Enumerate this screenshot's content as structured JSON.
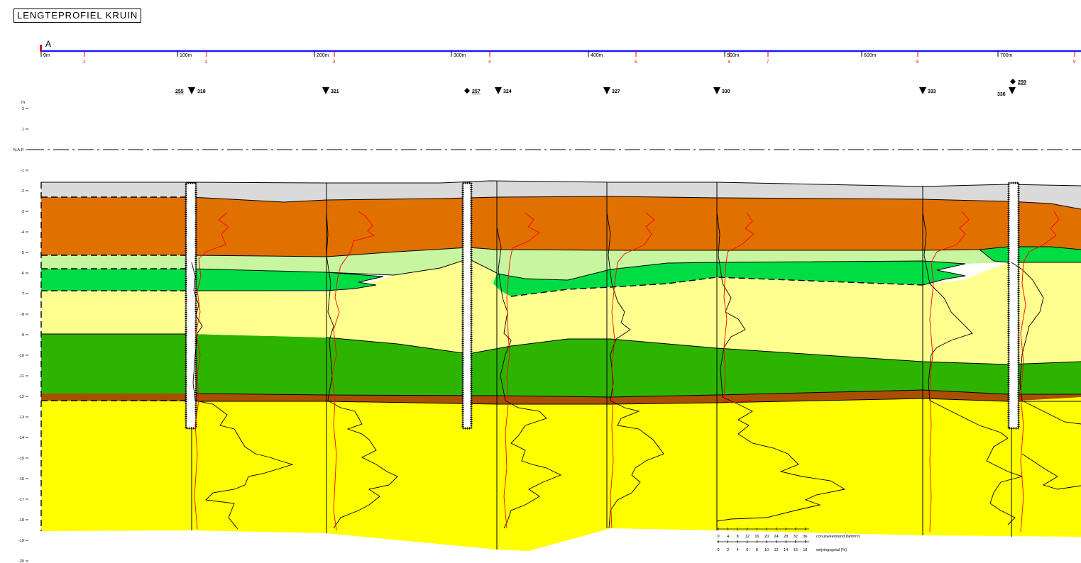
{
  "title": "LENGTEPROFIEL KRUIN",
  "section_marker": "A",
  "chainage_labels": [
    "0m",
    "100m",
    "200m",
    "300m",
    "400m",
    "500m",
    "600m",
    "700m"
  ],
  "red_markers": [
    "1",
    "2",
    "3",
    "4",
    "5",
    "6",
    "7",
    "8",
    "9"
  ],
  "y_axis": {
    "unit": "m",
    "ticks": [
      "2",
      "1",
      "N.A.P.",
      "-1",
      "-2",
      "-3",
      "-4",
      "-5",
      "-6",
      "-7",
      "-8",
      "-9",
      "-10",
      "-11",
      "-12",
      "-13",
      "-14",
      "-15",
      "-16",
      "-17",
      "-18",
      "-19",
      "-20"
    ]
  },
  "reference_line": "N.A.P.",
  "soundings": [
    {
      "id": "255",
      "type": "boring",
      "underlined": true
    },
    {
      "id": "318",
      "type": "cpt"
    },
    {
      "id": "321",
      "type": "cpt"
    },
    {
      "id": "257",
      "type": "boring",
      "underlined": true
    },
    {
      "id": "324",
      "type": "cpt"
    },
    {
      "id": "327",
      "type": "cpt"
    },
    {
      "id": "330",
      "type": "cpt"
    },
    {
      "id": "333",
      "type": "cpt"
    },
    {
      "id": "336",
      "type": "cpt"
    },
    {
      "id": "259",
      "type": "boring",
      "underlined": true
    }
  ],
  "scale_legend": {
    "cone_label": "conusweerstand (N/mm²)",
    "cone_ticks": [
      "0",
      "4",
      "8",
      "12",
      "16",
      "20",
      "24",
      "28",
      "32",
      "36"
    ],
    "friction_label": "wrijvingsgetal (%)",
    "friction_ticks": [
      "0",
      "2",
      "4",
      "6",
      "8",
      "10",
      "12",
      "14",
      "16",
      "18"
    ]
  },
  "colors": {
    "section_line": "#1a1aff",
    "marker": "#e00000",
    "layer_grey": "#dadada",
    "layer_clay_orange": "#e07000",
    "layer_light_green": "#c8f5a0",
    "layer_bright_green": "#00dd44",
    "layer_light_yellow": "#ffff90",
    "layer_dark_green": "#2db400",
    "layer_brown": "#a85000",
    "layer_sand_yellow": "#ffff00",
    "cone_curve": "#000000",
    "friction_curve": "#ff0000"
  }
}
